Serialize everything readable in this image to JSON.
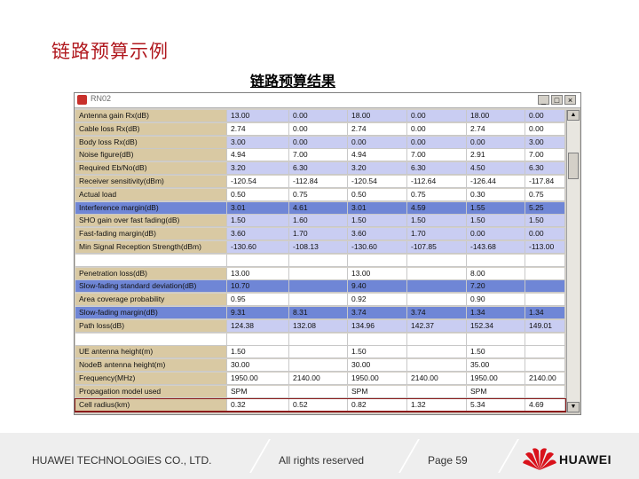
{
  "slide": {
    "title": "链路预算示例",
    "subtitle": "链路预算结果"
  },
  "window": {
    "title": "RN02",
    "buttons": [
      "_",
      "□",
      "×"
    ]
  },
  "rows": [
    {
      "label": "Antenna gain Rx(dB)",
      "vals": [
        "13.00",
        "0.00",
        "18.00",
        "0.00",
        "18.00",
        "0.00"
      ],
      "style": "lav"
    },
    {
      "label": "Cable loss Rx(dB)",
      "vals": [
        "2.74",
        "0.00",
        "2.74",
        "0.00",
        "2.74",
        "0.00"
      ],
      "style": "white"
    },
    {
      "label": "Body loss Rx(dB)",
      "vals": [
        "3.00",
        "0.00",
        "0.00",
        "0.00",
        "0.00",
        "3.00"
      ],
      "style": "lav"
    },
    {
      "label": "Noise figure(dB)",
      "vals": [
        "4.94",
        "7.00",
        "4.94",
        "7.00",
        "2.91",
        "7.00"
      ],
      "style": "white"
    },
    {
      "label": "Required Eb/No(dB)",
      "vals": [
        "3.20",
        "6.30",
        "3.20",
        "6.30",
        "4.50",
        "6.30"
      ],
      "style": "lav"
    },
    {
      "label": "Receiver sensitivity(dBm)",
      "vals": [
        "-120.54",
        "-112.84",
        "-120.54",
        "-112.64",
        "-126.44",
        "-117.84"
      ],
      "style": "white"
    },
    {
      "label": "Actual load",
      "vals": [
        "0.50",
        "0.75",
        "0.50",
        "0.75",
        "0.30",
        "0.75"
      ],
      "style": "white"
    },
    {
      "label": "Interference margin(dB)",
      "vals": [
        "3.01",
        "4.61",
        "3.01",
        "4.59",
        "1.55",
        "5.25"
      ],
      "style": "blue"
    },
    {
      "label": "SHO gain over fast fading(dB)",
      "vals": [
        "1.50",
        "1.60",
        "1.50",
        "1.50",
        "1.50",
        "1.50"
      ],
      "style": "lav"
    },
    {
      "label": "Fast-fading margin(dB)",
      "vals": [
        "3.60",
        "1.70",
        "3.60",
        "1.70",
        "0.00",
        "0.00"
      ],
      "style": "lav"
    },
    {
      "label": "Min Signal Reception Strength(dBm)",
      "vals": [
        "-130.60",
        "-108.13",
        "-130.60",
        "-107.85",
        "-143.68",
        "-113.00"
      ],
      "style": "lav"
    },
    {
      "label": "",
      "vals": [
        "",
        "",
        "",
        "",
        "",
        ""
      ],
      "style": "blank"
    },
    {
      "label": "Penetration loss(dB)",
      "vals": [
        "13.00",
        "",
        "13.00",
        "",
        "8.00",
        ""
      ],
      "style": "white"
    },
    {
      "label": "Slow-fading standard deviation(dB)",
      "vals": [
        "10.70",
        "",
        "9.40",
        "",
        "7.20",
        ""
      ],
      "style": "blue"
    },
    {
      "label": "Area coverage probability",
      "vals": [
        "0.95",
        "",
        "0.92",
        "",
        "0.90",
        ""
      ],
      "style": "white"
    },
    {
      "label": "Slow-fading margin(dB)",
      "vals": [
        "9.31",
        "8.31",
        "3.74",
        "3.74",
        "1.34",
        "1.34"
      ],
      "style": "blue"
    },
    {
      "label": "Path loss(dB)",
      "vals": [
        "124.38",
        "132.08",
        "134.96",
        "142.37",
        "152.34",
        "149.01"
      ],
      "style": "lav"
    },
    {
      "label": "",
      "vals": [
        "",
        "",
        "",
        "",
        "",
        ""
      ],
      "style": "blank"
    },
    {
      "label": "UE antenna height(m)",
      "vals": [
        "1.50",
        "",
        "1.50",
        "",
        "1.50",
        ""
      ],
      "style": "white"
    },
    {
      "label": "NodeB antenna height(m)",
      "vals": [
        "30.00",
        "",
        "30.00",
        "",
        "35.00",
        ""
      ],
      "style": "white"
    },
    {
      "label": "Frequency(MHz)",
      "vals": [
        "1950.00",
        "2140.00",
        "1950.00",
        "2140.00",
        "1950.00",
        "2140.00"
      ],
      "style": "white"
    },
    {
      "label": "Propagation model used",
      "vals": [
        "SPM",
        "",
        "SPM",
        "",
        "SPM",
        ""
      ],
      "style": "white"
    },
    {
      "label": "Cell radius(km)",
      "vals": [
        "0.32",
        "0.52",
        "0.82",
        "1.32",
        "5.34",
        "4.69"
      ],
      "style": "white",
      "highlight": true
    }
  ],
  "footer": {
    "company": "HUAWEI TECHNOLOGIES CO., LTD.",
    "rights": "All rights reserved",
    "page": "Page 59",
    "brand": "HUAWEI"
  },
  "colors": {
    "title_red": "#b0181e",
    "label_tan": "#d9c9a3",
    "row_lavender": "#c9cdf2",
    "row_blue": "#6f86d6",
    "highlight": "#8b1a1a"
  }
}
